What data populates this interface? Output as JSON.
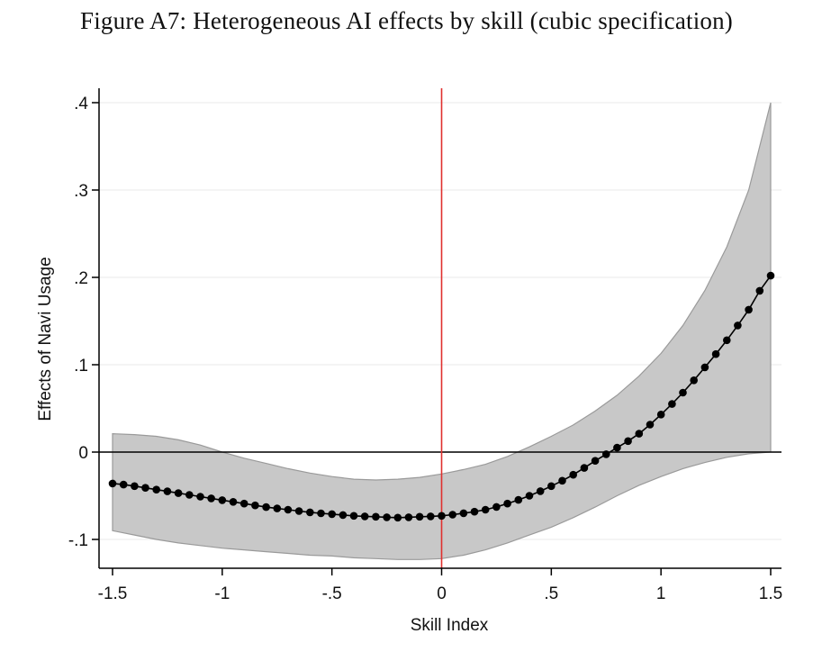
{
  "figure": {
    "title": "Figure A7: Heterogeneous AI effects by skill (cubic specification)"
  },
  "colors": {
    "band": "#c8c8c8",
    "band_edge": "#9a9a9a",
    "points": "#000000",
    "ref_vline": "#e0302e",
    "zero_line": "#000000",
    "grid": "#eeeeee"
  },
  "chart_data": {
    "type": "line",
    "title": "",
    "xlabel": "Skill Index",
    "ylabel": "Effects of Navi Usage",
    "xlim": [
      -1.5,
      1.5
    ],
    "ylim": [
      -0.13,
      0.42
    ],
    "xticks": [
      -1.5,
      -1,
      -0.5,
      0,
      0.5,
      1,
      1.5
    ],
    "xtick_labels": [
      "-1.5",
      "-1",
      "-.5",
      "0",
      ".5",
      "1",
      "1.5"
    ],
    "yticks": [
      -0.1,
      0,
      0.1,
      0.2,
      0.3,
      0.4
    ],
    "ytick_labels": [
      "-.1",
      "0",
      ".1",
      ".2",
      ".3",
      ".4"
    ],
    "grid": true,
    "reference_lines": {
      "vertical_x": 0,
      "horizontal_y": 0
    },
    "series": [
      {
        "x": [
          -1.5,
          -1.4,
          -1.3,
          -1.2,
          -1.1,
          -1.0,
          -0.9,
          -0.8,
          -0.7,
          -0.6,
          -0.5,
          -0.4,
          -0.3,
          -0.2,
          -0.1,
          0.0,
          0.1,
          0.2,
          0.3,
          0.4,
          0.5,
          0.6,
          0.7,
          0.8,
          0.9,
          1.0,
          1.1,
          1.2,
          1.3,
          1.4,
          1.5
        ],
        "values": [
          -0.036,
          -0.039,
          -0.043,
          -0.047,
          -0.051,
          -0.055,
          -0.059,
          -0.063,
          -0.066,
          -0.069,
          -0.071,
          -0.073,
          -0.074,
          -0.075,
          -0.074,
          -0.073,
          -0.07,
          -0.066,
          -0.059,
          -0.05,
          -0.039,
          -0.026,
          -0.01,
          0.005,
          0.021,
          0.043,
          0.068,
          0.097,
          0.128,
          0.163,
          0.202
        ],
        "ci_lower": [
          -0.09,
          -0.095,
          -0.1,
          -0.104,
          -0.107,
          -0.11,
          -0.112,
          -0.114,
          -0.116,
          -0.118,
          -0.119,
          -0.121,
          -0.122,
          -0.123,
          -0.123,
          -0.122,
          -0.118,
          -0.112,
          -0.104,
          -0.095,
          -0.086,
          -0.075,
          -0.063,
          -0.05,
          -0.038,
          -0.028,
          -0.019,
          -0.012,
          -0.006,
          -0.002,
          0.0
        ],
        "ci_upper": [
          0.021,
          0.02,
          0.018,
          0.014,
          0.008,
          0.0,
          -0.007,
          -0.013,
          -0.019,
          -0.024,
          -0.028,
          -0.031,
          -0.032,
          -0.031,
          -0.029,
          -0.025,
          -0.02,
          -0.014,
          -0.005,
          0.006,
          0.018,
          0.031,
          0.047,
          0.065,
          0.087,
          0.113,
          0.145,
          0.185,
          0.235,
          0.3,
          0.4
        ],
        "interpolated_points_per_interval": 2
      }
    ]
  }
}
